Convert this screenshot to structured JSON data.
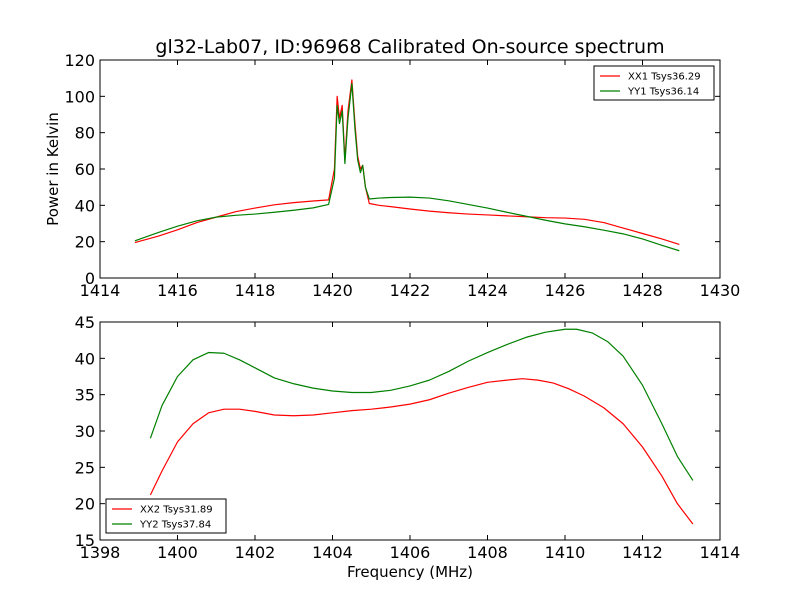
{
  "chart_data": [
    {
      "type": "line",
      "title": "gl32-Lab07, ID:96968 Calibrated On-source spectrum",
      "xlabel": "",
      "ylabel": "Power in Kelvin",
      "xlim": [
        1414,
        1430
      ],
      "ylim": [
        0,
        120
      ],
      "xticks": [
        1414,
        1416,
        1418,
        1420,
        1422,
        1424,
        1426,
        1428,
        1430
      ],
      "yticks": [
        0,
        20,
        40,
        60,
        80,
        100,
        120
      ],
      "legend_position": "top-right",
      "series": [
        {
          "name": "XX1 Tsys36.29",
          "color": "#ff0000",
          "x": [
            1414.9,
            1415.5,
            1416.0,
            1416.5,
            1417.0,
            1417.5,
            1418.0,
            1418.5,
            1419.0,
            1419.5,
            1419.9,
            1420.05,
            1420.12,
            1420.18,
            1420.25,
            1420.32,
            1420.4,
            1420.5,
            1420.58,
            1420.65,
            1420.72,
            1420.78,
            1420.85,
            1420.95,
            1421.2,
            1421.5,
            1422.0,
            1422.5,
            1423.0,
            1423.5,
            1424.0,
            1424.5,
            1425.0,
            1425.5,
            1426.0,
            1426.5,
            1427.0,
            1427.5,
            1428.0,
            1428.5,
            1428.95
          ],
          "y": [
            19.5,
            23.0,
            26.5,
            30.5,
            33.5,
            36.5,
            38.5,
            40.3,
            41.5,
            42.4,
            43.0,
            60.0,
            100.0,
            88.0,
            95.0,
            65.0,
            92.0,
            109.0,
            85.0,
            67.0,
            60.0,
            62.0,
            50.0,
            41.0,
            40.0,
            39.3,
            38.0,
            36.8,
            35.9,
            35.2,
            34.7,
            34.2,
            33.7,
            33.2,
            33.0,
            32.3,
            30.5,
            27.5,
            24.5,
            21.5,
            18.5
          ]
        },
        {
          "name": "YY1 Tsys36.14",
          "color": "#008000",
          "x": [
            1414.9,
            1415.5,
            1416.0,
            1416.5,
            1417.0,
            1417.5,
            1418.0,
            1418.5,
            1419.0,
            1419.5,
            1419.9,
            1420.05,
            1420.12,
            1420.18,
            1420.25,
            1420.32,
            1420.4,
            1420.5,
            1420.58,
            1420.65,
            1420.72,
            1420.78,
            1420.85,
            1420.95,
            1421.2,
            1421.5,
            1422.0,
            1422.5,
            1423.0,
            1423.5,
            1424.0,
            1424.5,
            1425.0,
            1425.5,
            1426.0,
            1426.5,
            1427.0,
            1427.5,
            1428.0,
            1428.5,
            1428.95
          ],
          "y": [
            20.5,
            25.0,
            28.5,
            31.5,
            33.5,
            34.5,
            35.2,
            36.2,
            37.3,
            38.6,
            40.5,
            55.0,
            95.0,
            85.0,
            92.0,
            63.0,
            88.0,
            107.0,
            82.0,
            65.0,
            58.0,
            62.0,
            50.0,
            43.5,
            44.0,
            44.3,
            44.5,
            44.0,
            42.5,
            40.5,
            38.5,
            36.2,
            34.0,
            31.8,
            29.8,
            28.2,
            26.3,
            24.3,
            21.5,
            18.0,
            15.0
          ]
        }
      ]
    },
    {
      "type": "line",
      "title": "",
      "xlabel": "Frequency (MHz)",
      "ylabel": "",
      "xlim": [
        1398,
        1414
      ],
      "ylim": [
        15,
        45
      ],
      "xticks": [
        1398,
        1400,
        1402,
        1404,
        1406,
        1408,
        1410,
        1412,
        1414
      ],
      "yticks": [
        15,
        20,
        25,
        30,
        35,
        40,
        45
      ],
      "legend_position": "bottom-left",
      "series": [
        {
          "name": "XX2 Tsys31.89",
          "color": "#ff0000",
          "x": [
            1399.3,
            1399.6,
            1400.0,
            1400.4,
            1400.8,
            1401.2,
            1401.6,
            1402.0,
            1402.5,
            1403.0,
            1403.5,
            1404.0,
            1404.5,
            1405.0,
            1405.5,
            1406.0,
            1406.5,
            1407.0,
            1407.5,
            1408.0,
            1408.5,
            1408.9,
            1409.3,
            1409.7,
            1410.1,
            1410.5,
            1411.0,
            1411.5,
            1412.0,
            1412.5,
            1412.9,
            1413.3
          ],
          "y": [
            21.2,
            24.5,
            28.5,
            31.0,
            32.5,
            33.0,
            33.0,
            32.7,
            32.2,
            32.1,
            32.2,
            32.5,
            32.8,
            33.0,
            33.3,
            33.7,
            34.3,
            35.2,
            36.0,
            36.7,
            37.0,
            37.2,
            37.0,
            36.6,
            35.8,
            34.8,
            33.2,
            31.0,
            27.8,
            23.8,
            20.0,
            17.2
          ]
        },
        {
          "name": "YY2 Tsys37.84",
          "color": "#008000",
          "x": [
            1399.3,
            1399.6,
            1400.0,
            1400.4,
            1400.8,
            1401.2,
            1401.6,
            1402.0,
            1402.5,
            1403.0,
            1403.5,
            1404.0,
            1404.5,
            1405.0,
            1405.5,
            1406.0,
            1406.5,
            1407.0,
            1407.5,
            1408.0,
            1408.5,
            1409.0,
            1409.5,
            1410.0,
            1410.3,
            1410.7,
            1411.1,
            1411.5,
            1412.0,
            1412.5,
            1412.9,
            1413.3
          ],
          "y": [
            29.0,
            33.5,
            37.5,
            39.8,
            40.8,
            40.7,
            39.8,
            38.7,
            37.3,
            36.5,
            35.9,
            35.5,
            35.3,
            35.3,
            35.6,
            36.2,
            37.0,
            38.2,
            39.6,
            40.8,
            41.9,
            42.9,
            43.6,
            44.0,
            44.0,
            43.5,
            42.3,
            40.3,
            36.3,
            31.0,
            26.5,
            23.2
          ]
        }
      ]
    }
  ]
}
